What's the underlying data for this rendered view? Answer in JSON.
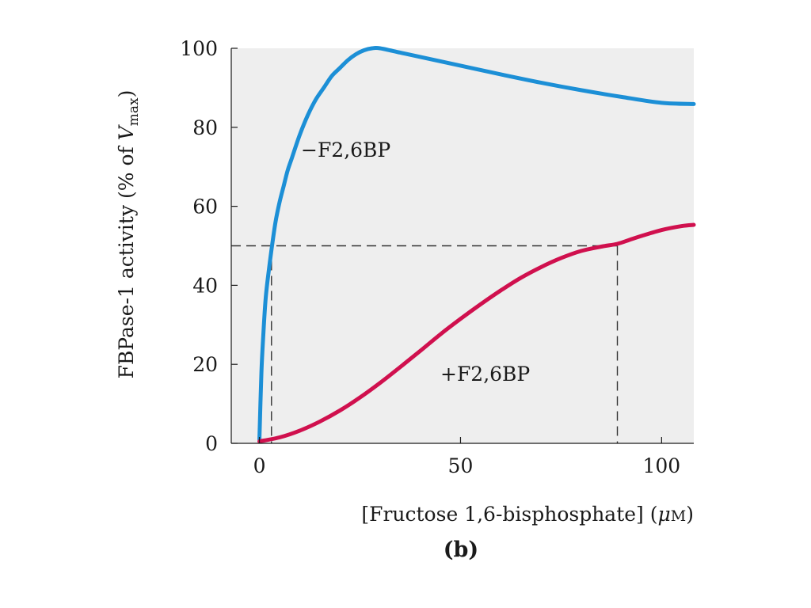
{
  "chart_data": {
    "type": "line",
    "panel_label": "(b)",
    "xlabel_main": "[Fructose 1,6-bisphosphate] (",
    "xlabel_unit_mu": "μ",
    "xlabel_unit_m": "M",
    "xlabel_close": ")",
    "ylabel_main": "FBPase-1 activity (% of ",
    "ylabel_v": "V",
    "ylabel_sub": "max",
    "ylabel_close": ")",
    "xlim": [
      -7,
      108
    ],
    "ylim": [
      0,
      100
    ],
    "x_ticks": [
      0,
      50,
      100
    ],
    "y_ticks": [
      0,
      20,
      40,
      60,
      80,
      100
    ],
    "x_tick_labels": [
      "0",
      "50",
      "100"
    ],
    "y_tick_labels": [
      "0",
      "20",
      "40",
      "60",
      "80",
      "100"
    ],
    "grid": false,
    "background_color": "#eeeeee",
    "reference_lines": {
      "y": 50,
      "x_minus": 3,
      "x_plus": 89
    },
    "series": [
      {
        "name": "−F2,6BP",
        "color": "#1c8fd6",
        "x": [
          0,
          0.5,
          1,
          1.5,
          2,
          3,
          4,
          5,
          6,
          7,
          8,
          10,
          12,
          14,
          16,
          18,
          20,
          22,
          24,
          26,
          28,
          30,
          35,
          40,
          50,
          60,
          70,
          80,
          90,
          100,
          108
        ],
        "y": [
          1,
          18,
          28,
          36,
          41,
          49,
          56,
          61,
          65,
          69,
          72,
          78,
          83,
          87,
          90,
          93,
          95,
          97,
          98.5,
          99.5,
          100,
          100,
          98.9,
          97.8,
          95.6,
          93.4,
          91.3,
          89.4,
          87.7,
          86.2,
          85.9
        ]
      },
      {
        "name": "+F2,6BP",
        "color": "#d0104e",
        "x": [
          0,
          5,
          10,
          15,
          20,
          25,
          30,
          35,
          40,
          45,
          50,
          55,
          60,
          65,
          70,
          75,
          80,
          85,
          89,
          92,
          95,
          100,
          105,
          108
        ],
        "y": [
          0.5,
          1.5,
          3.2,
          5.5,
          8.3,
          11.6,
          15.3,
          19.3,
          23.4,
          27.6,
          31.5,
          35.2,
          38.7,
          41.9,
          44.6,
          46.9,
          48.7,
          49.8,
          50.5,
          51.5,
          52.5,
          54,
          55,
          55.3
        ]
      }
    ]
  }
}
